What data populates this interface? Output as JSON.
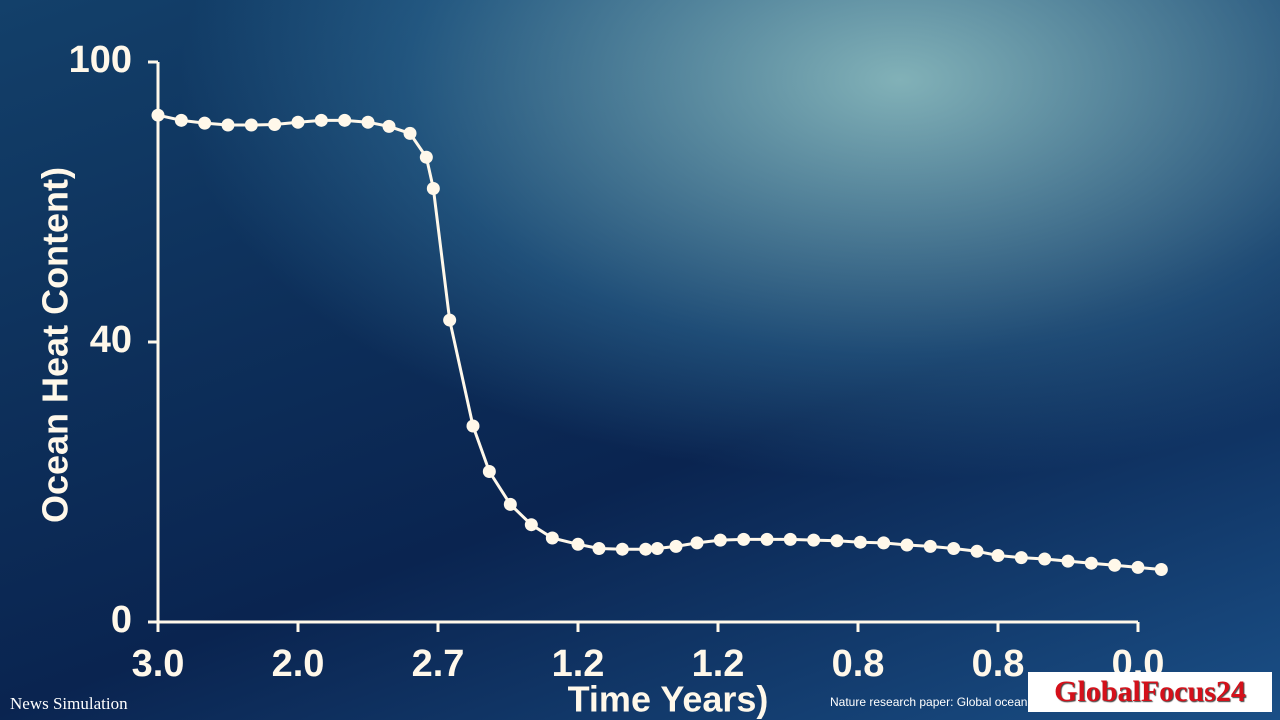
{
  "chart_data": {
    "type": "line",
    "ylabel": "Ocean Heat Content)",
    "xlabel": "Time Years)",
    "xlim": [
      0,
      42
    ],
    "xticks": [
      {
        "value": 0,
        "label": "3.0"
      },
      {
        "value": 6,
        "label": "2.0"
      },
      {
        "value": 12,
        "label": "2.7"
      },
      {
        "value": 18,
        "label": "1.2"
      },
      {
        "value": 24,
        "label": "1.2"
      },
      {
        "value": 30,
        "label": "0.8"
      },
      {
        "value": 36,
        "label": "0.8"
      },
      {
        "value": 42,
        "label": "0.0"
      }
    ],
    "ylim": [
      0,
      100
    ],
    "yticks": [
      0,
      40,
      100
    ],
    "x": [
      0,
      1.0,
      2.0,
      3.0,
      4.0,
      5.0,
      6.0,
      7.0,
      8.0,
      9.0,
      9.9,
      10.8,
      11.5,
      11.8,
      12.5,
      13.5,
      14.2,
      15.1,
      16.0,
      16.9,
      18.0,
      18.9,
      19.9,
      20.9,
      21.4,
      22.2,
      23.1,
      24.1,
      25.1,
      26.1,
      27.1,
      28.1,
      29.1,
      30.1,
      31.1,
      32.1,
      33.1,
      34.1,
      35.1,
      36.0,
      37.0,
      38.0,
      39.0,
      40.0,
      41.0,
      42.0,
      43.0
    ],
    "series": [
      {
        "color": "#fff8ea",
        "values": [
          88.6,
          87.5,
          86.9,
          86.5,
          86.5,
          86.6,
          87.1,
          87.5,
          87.5,
          87.1,
          86.2,
          84.7,
          79.6,
          72.9,
          44.7,
          28.0,
          21.5,
          16.8,
          13.9,
          12.0,
          11.1,
          10.5,
          10.4,
          10.4,
          10.5,
          10.8,
          11.3,
          11.7,
          11.8,
          11.8,
          11.8,
          11.7,
          11.6,
          11.4,
          11.3,
          11.0,
          10.8,
          10.5,
          10.1,
          9.5,
          9.2,
          9.0,
          8.7,
          8.4,
          8.1,
          7.8,
          7.5
        ]
      }
    ]
  },
  "overlay": {
    "label": "News Simulation",
    "source": "Nature research paper: Global ocean",
    "logo": "GlobalFocus24"
  }
}
